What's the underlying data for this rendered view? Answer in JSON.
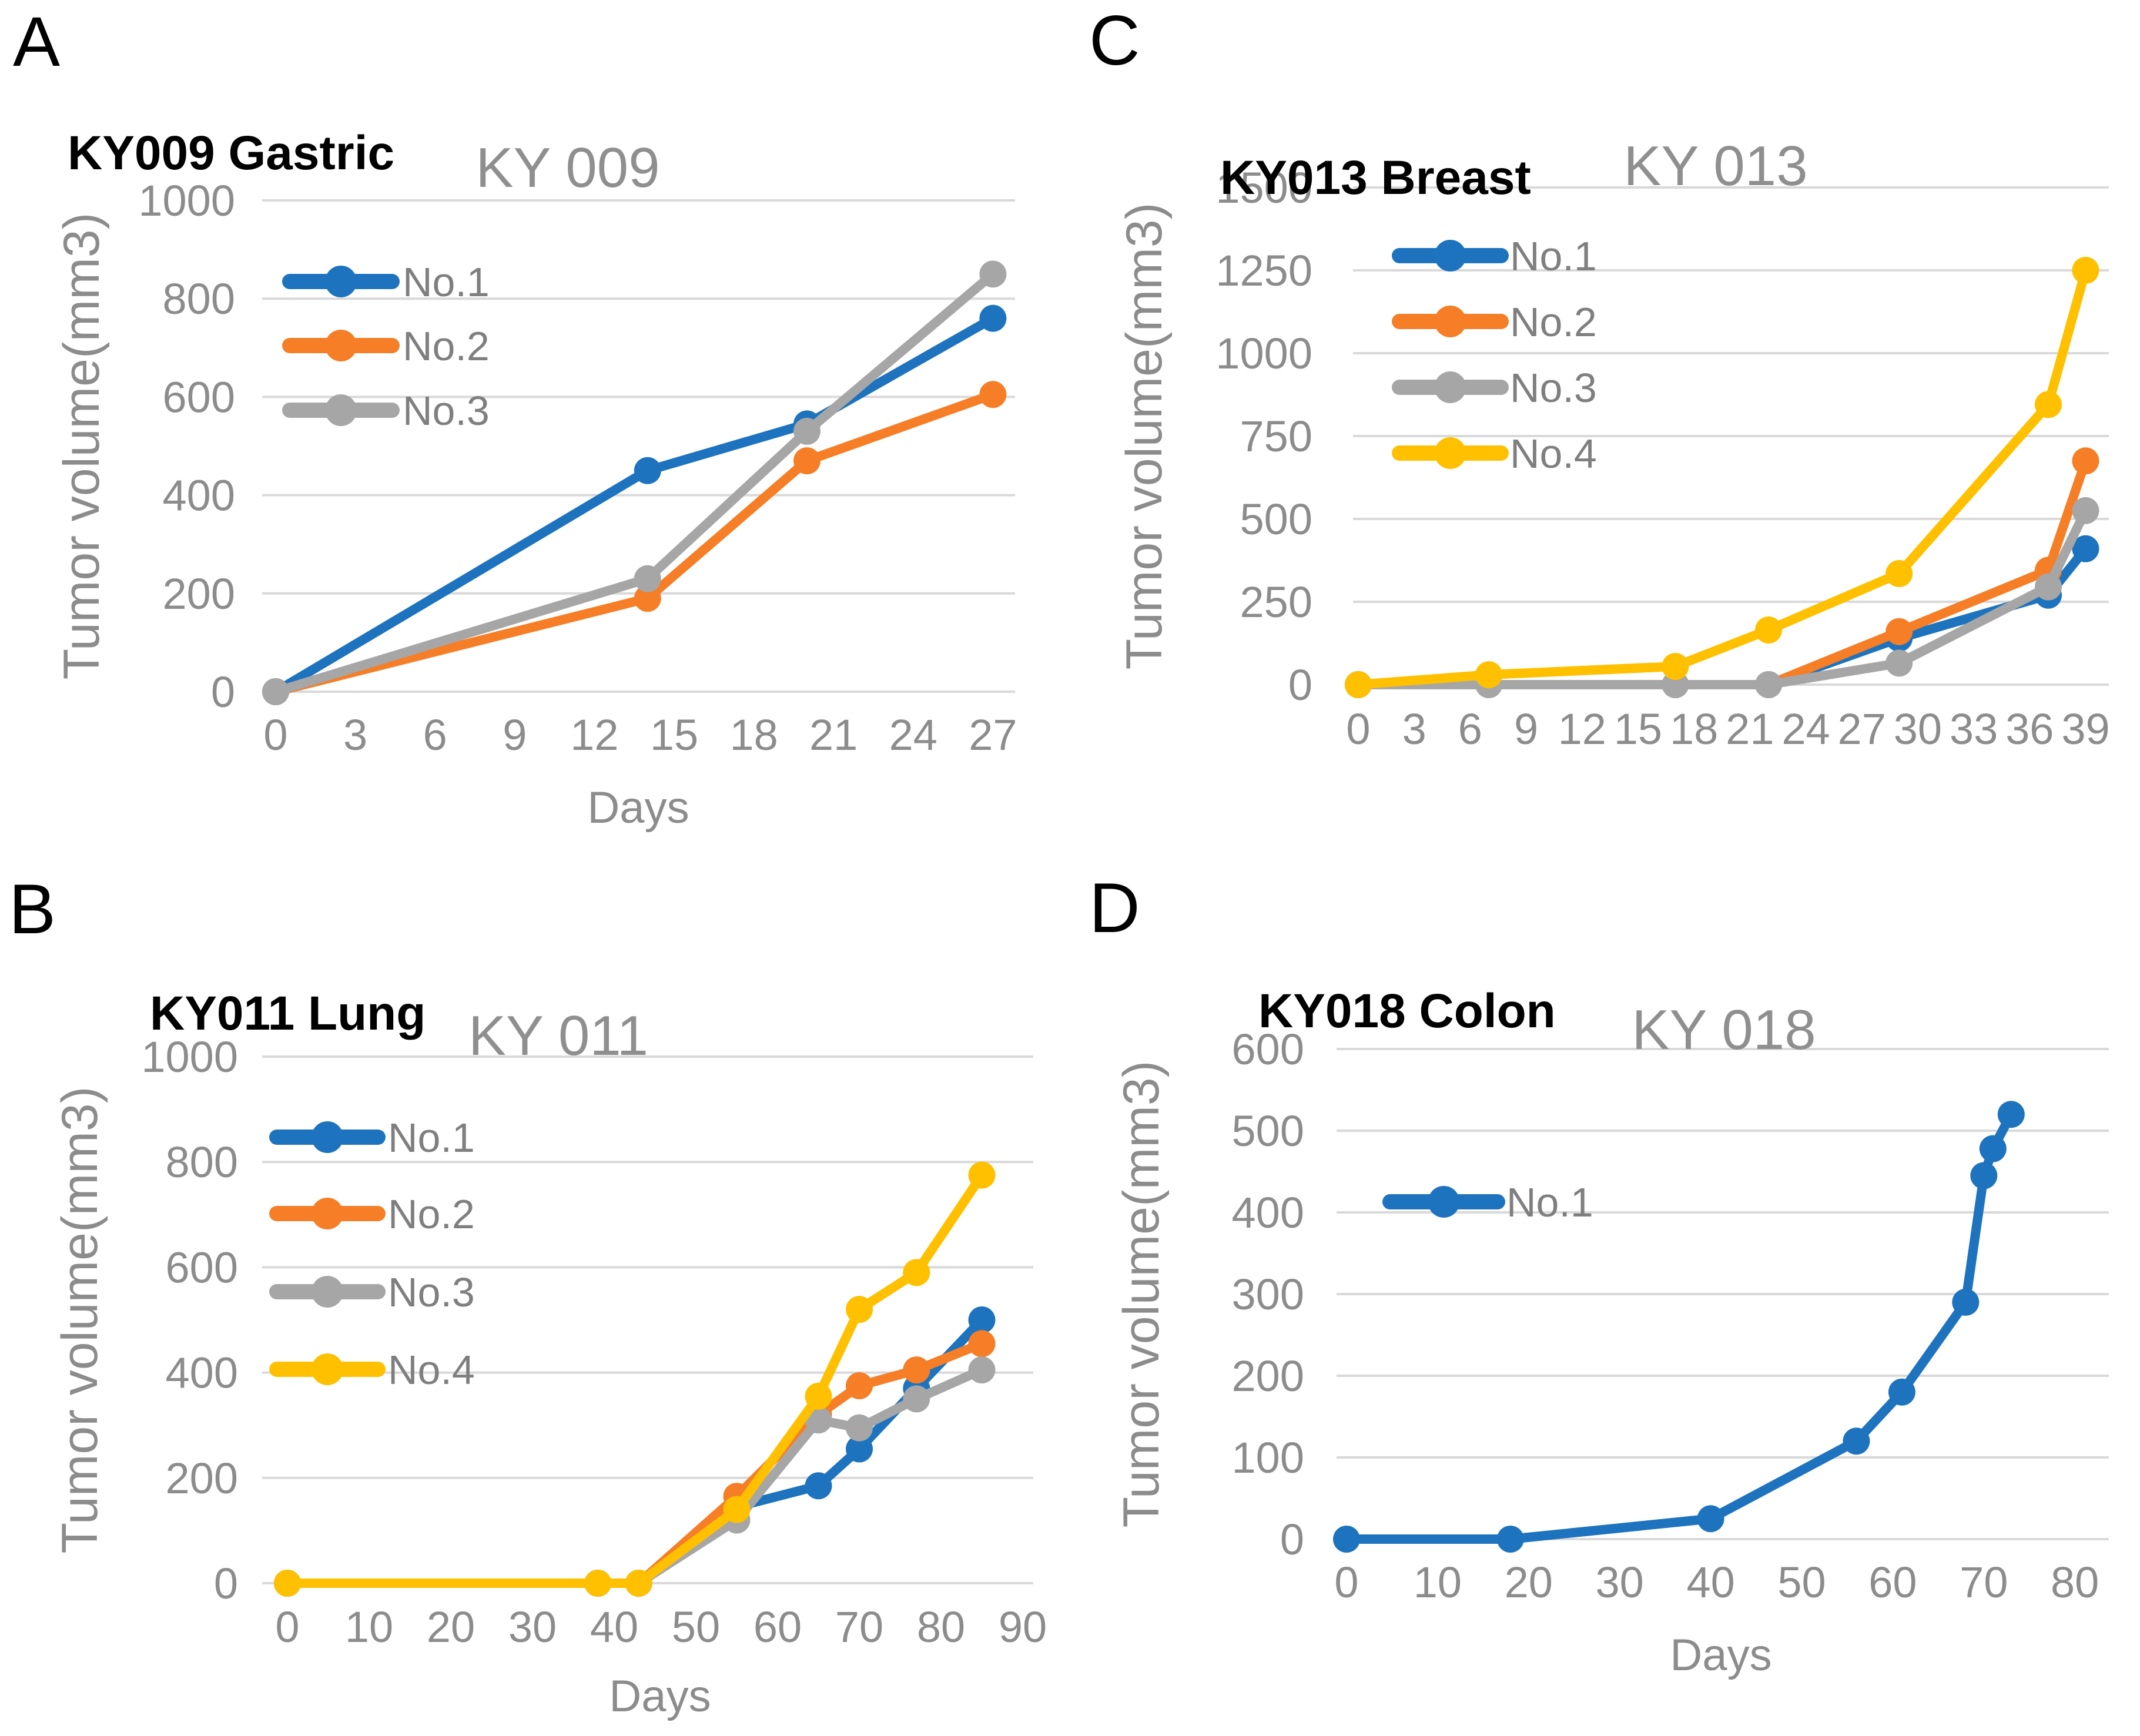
{
  "chart_data": [
    {
      "panel_letter": "A",
      "header": "KY009 Gastric",
      "title": "KY 009",
      "type": "line",
      "ylabel": "Tumor volume(mm3)",
      "xlabel": "Days",
      "ylim": [
        0,
        1000
      ],
      "ytick_step": 200,
      "xticks": [
        0,
        3,
        6,
        9,
        12,
        15,
        18,
        21,
        24,
        27
      ],
      "grid": "horizontal",
      "legend_position": "upper-left-inside",
      "x_days": [
        0,
        14,
        20,
        27
      ],
      "series": [
        {
          "name": "No.1",
          "color": "#1E73BE",
          "values": [
            0,
            450,
            545,
            760
          ]
        },
        {
          "name": "No.2",
          "color": "#F57E27",
          "values": [
            0,
            190,
            470,
            605
          ]
        },
        {
          "name": "No.3",
          "color": "#A6A6A6",
          "values": [
            0,
            230,
            530,
            850
          ]
        }
      ]
    },
    {
      "panel_letter": "B",
      "header": "KY011 Lung",
      "title": "KY 011",
      "type": "line",
      "ylabel": "Tumor volume(mm3)",
      "xlabel": "Days",
      "ylim": [
        0,
        1000
      ],
      "ytick_step": 200,
      "xticks": [
        0,
        10,
        20,
        30,
        40,
        50,
        60,
        70,
        80,
        90
      ],
      "grid": "horizontal",
      "legend_position": "upper-left-inside",
      "x_days": [
        0,
        38,
        43,
        55,
        65,
        70,
        77,
        85
      ],
      "series": [
        {
          "name": "No.1",
          "color": "#1E73BE",
          "values": [
            0,
            0,
            0,
            145,
            185,
            255,
            370,
            500
          ]
        },
        {
          "name": "No.2",
          "color": "#F57E27",
          "values": [
            0,
            0,
            0,
            165,
            320,
            375,
            405,
            455
          ]
        },
        {
          "name": "No.3",
          "color": "#A6A6A6",
          "values": [
            0,
            0,
            0,
            120,
            310,
            295,
            350,
            405
          ]
        },
        {
          "name": "No.4",
          "color": "#FFC000",
          "values": [
            0,
            0,
            0,
            140,
            355,
            520,
            590,
            775
          ]
        }
      ]
    },
    {
      "panel_letter": "C",
      "header": "KY013 Breast",
      "title": "KY 013",
      "type": "line",
      "ylabel": "Tumor volume(mm3)",
      "xlabel": null,
      "ylim": [
        0,
        1500
      ],
      "ytick_step": 250,
      "xticks": [
        0,
        3,
        6,
        9,
        12,
        15,
        18,
        21,
        24,
        27,
        30,
        33,
        36,
        39
      ],
      "grid": "horizontal",
      "legend_position": "upper-left-inside",
      "x_days": [
        0,
        7,
        17,
        22,
        29,
        37,
        39
      ],
      "series": [
        {
          "name": "No.1",
          "color": "#1E73BE",
          "values": [
            0,
            0,
            0,
            0,
            140,
            270,
            410
          ]
        },
        {
          "name": "No.2",
          "color": "#F57E27",
          "values": [
            0,
            0,
            0,
            0,
            160,
            345,
            675
          ]
        },
        {
          "name": "No.3",
          "color": "#A6A6A6",
          "values": [
            0,
            0,
            0,
            0,
            65,
            295,
            525
          ]
        },
        {
          "name": "No.4",
          "color": "#FFC000",
          "values": [
            0,
            30,
            55,
            165,
            335,
            845,
            1250
          ]
        }
      ]
    },
    {
      "panel_letter": "D",
      "header": "KY018 Colon",
      "title": "KY 018",
      "type": "line",
      "ylabel": "Tumor volume(mm3)",
      "xlabel": "Days",
      "ylim": [
        0,
        600
      ],
      "ytick_step": 100,
      "xticks": [
        0,
        10,
        20,
        30,
        40,
        50,
        60,
        70,
        80
      ],
      "grid": "horizontal",
      "legend_position": "center-left-inside",
      "x_days": [
        0,
        18,
        40,
        56,
        61,
        68,
        70,
        71,
        73
      ],
      "series": [
        {
          "name": "No.1",
          "color": "#1E73BE",
          "values": [
            0,
            0,
            25,
            120,
            180,
            290,
            445,
            478,
            520
          ]
        }
      ]
    }
  ],
  "colors": {
    "series_blue": "#1E73BE",
    "series_orange": "#F57E27",
    "series_gray": "#A6A6A6",
    "series_yellow": "#FFC000",
    "gridline": "#D9D9D9",
    "tick_text": "#8C8C8C",
    "legend_text": "#7F7F7F",
    "title_text": "#8F8F8F",
    "header_text": "#000000"
  }
}
